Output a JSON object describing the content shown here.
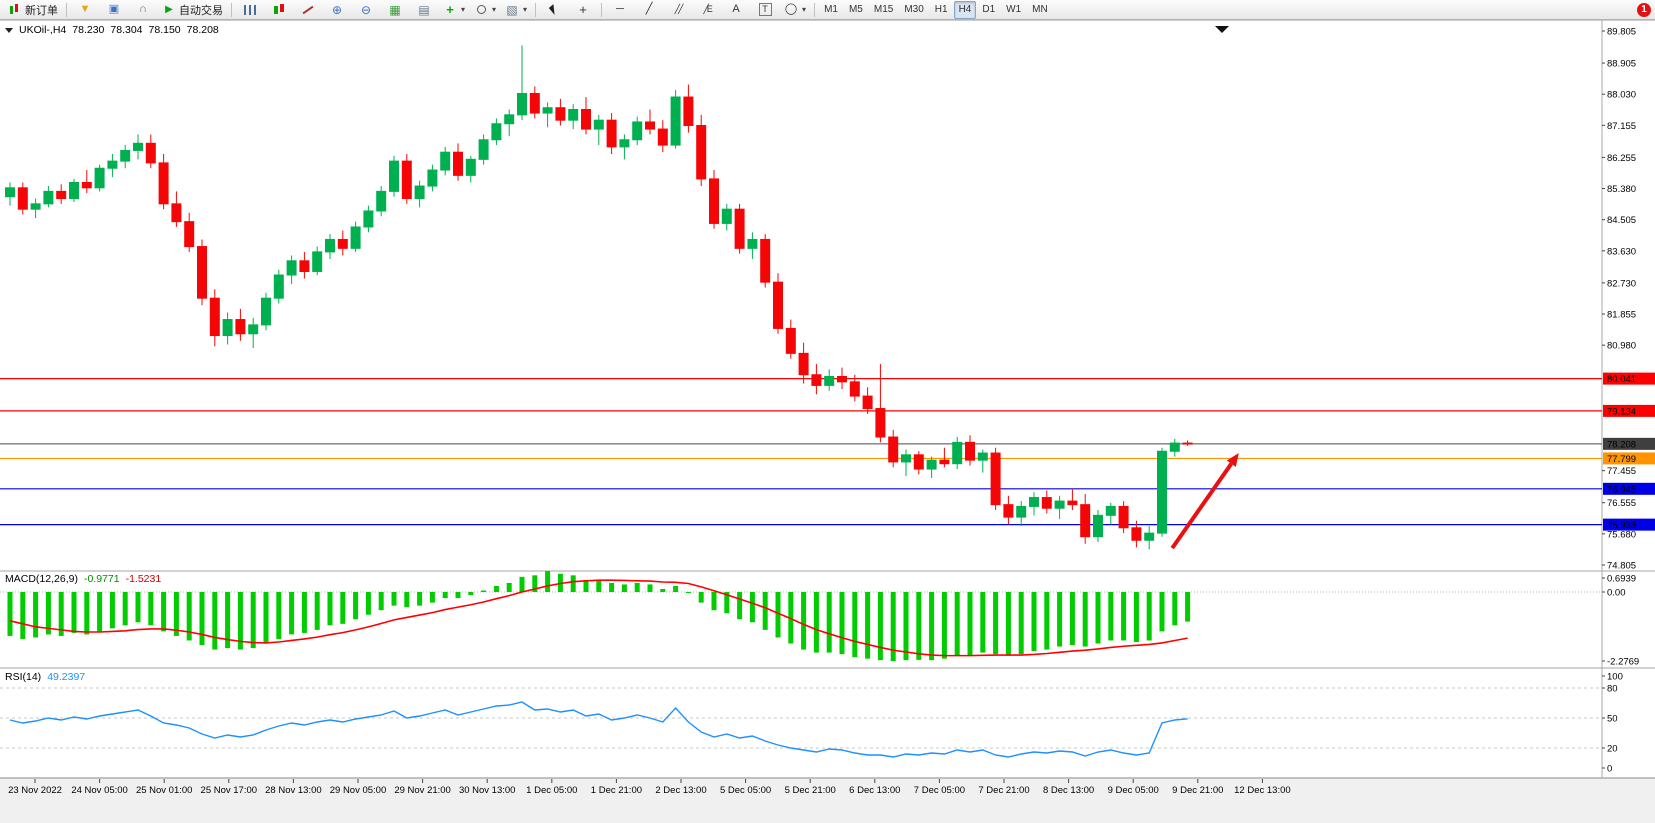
{
  "toolbar": {
    "buttons": [
      {
        "type": "labeled",
        "name": "new-order-button",
        "icon": "new-order-icon",
        "label": "新订单"
      },
      {
        "type": "sep"
      },
      {
        "type": "icon",
        "name": "funnel-button",
        "icon": "funnel-icon"
      },
      {
        "type": "icon",
        "name": "terminal-button",
        "icon": "terminal-icon"
      },
      {
        "type": "icon",
        "name": "headset-button",
        "icon": "headset-icon"
      },
      {
        "type": "labeled",
        "name": "auto-trading-button",
        "icon": "play-icon",
        "label": "自动交易"
      },
      {
        "type": "sep"
      },
      {
        "type": "icon",
        "name": "bar-chart-button",
        "icon": "bars-icon"
      },
      {
        "type": "icon",
        "name": "candle-chart-button",
        "icon": "candles-icon"
      },
      {
        "type": "icon",
        "name": "line-chart-button",
        "icon": "linechart-icon"
      },
      {
        "type": "icon",
        "name": "zoom-in-button",
        "icon": "zoom-in-icon"
      },
      {
        "type": "icon",
        "name": "zoom-out-button",
        "icon": "zoom-out-icon"
      },
      {
        "type": "icon",
        "name": "tile-windows-button",
        "icon": "tile-icon"
      },
      {
        "type": "icon",
        "name": "cascade-windows-button",
        "icon": "cascade-icon"
      },
      {
        "type": "icon",
        "name": "indicators-button",
        "icon": "plus-icon",
        "dropdown": true
      },
      {
        "type": "icon",
        "name": "periods-button",
        "icon": "clock-icon",
        "dropdown": true
      },
      {
        "type": "icon",
        "name": "templates-button",
        "icon": "template-icon",
        "dropdown": true
      },
      {
        "type": "sep"
      },
      {
        "type": "icon",
        "name": "cursor-button",
        "icon": "cursor-icon"
      },
      {
        "type": "icon",
        "name": "crosshair-button",
        "icon": "crosshair-icon"
      },
      {
        "type": "sep"
      },
      {
        "type": "icon",
        "name": "hline-button",
        "icon": "hline-icon"
      },
      {
        "type": "icon",
        "name": "trendline-button",
        "icon": "trendline-icon"
      },
      {
        "type": "icon",
        "name": "channel-button",
        "icon": "channel-icon"
      },
      {
        "type": "icon",
        "name": "fibo-button",
        "icon": "fibo-icon"
      },
      {
        "type": "icon",
        "name": "text-button",
        "icon": "text-icon"
      },
      {
        "type": "icon",
        "name": "label-button",
        "icon": "label-icon"
      },
      {
        "type": "icon",
        "name": "shapes-button",
        "icon": "shapes-icon",
        "dropdown": true
      },
      {
        "type": "sep"
      }
    ],
    "icon_glyphs": {
      "funnel-icon": "▼",
      "terminal-icon": "▣",
      "headset-icon": "∩",
      "play-icon": "▶",
      "zoom-in-icon": "⊕",
      "zoom-out-icon": "⊖",
      "tile-icon": "▦",
      "cascade-icon": "▤",
      "plus-icon": "+",
      "template-icon": "▧",
      "crosshair-icon": "+",
      "hline-icon": "─",
      "trendline-icon": "╱",
      "channel-icon": "╱╱",
      "fibo-icon": "╱E",
      "text-icon": "A",
      "label-icon": "T",
      "shapes-icon": "◯",
      "new-order-icon": "",
      "bars-icon": "",
      "candles-icon": "",
      "linechart-icon": "",
      "cursor-icon": "",
      "clock-icon": ""
    },
    "timeframes": [
      "M1",
      "M5",
      "M15",
      "M30",
      "H1",
      "H4",
      "D1",
      "W1",
      "MN"
    ],
    "active_timeframe": "H4",
    "notification_count": "1"
  },
  "chart": {
    "symbol_period": "UKOil-,H4",
    "open": "78.230",
    "high": "78.304",
    "low": "78.150",
    "close": "78.208"
  },
  "indicators": {
    "macd": {
      "label": "MACD(12,26,9)",
      "main_value": "-0.9771",
      "signal_value": "-1.5231",
      "axis_labels": [
        "0.6939",
        "0.00",
        "-2.2769"
      ]
    },
    "rsi": {
      "label": "RSI(14)",
      "value": "49.2397",
      "axis_labels": [
        "100",
        "80",
        "50",
        "20",
        "0"
      ],
      "levels": [
        80,
        50,
        20
      ]
    }
  },
  "colors": {
    "bull": "#00b050",
    "bear": "#f40606",
    "macd_bar": "#00cc00",
    "macd_signal": "#ff0000",
    "rsi_line": "#1e90ff",
    "current_badge": "#3f3f3f"
  },
  "chart_data": {
    "type": "candlestick",
    "symbol": "UKOil-",
    "timeframe": "H4",
    "x_labels": [
      "23 Nov 2022",
      "24 Nov 05:00",
      "25 Nov 01:00",
      "25 Nov 17:00",
      "28 Nov 13:00",
      "29 Nov 05:00",
      "29 Nov 21:00",
      "30 Nov 13:00",
      "1 Dec 05:00",
      "1 Dec 21:00",
      "2 Dec 13:00",
      "5 Dec 05:00",
      "5 Dec 21:00",
      "6 Dec 13:00",
      "7 Dec 05:00",
      "7 Dec 21:00",
      "8 Dec 13:00",
      "9 Dec 05:00",
      "9 Dec 21:00",
      "12 Dec 13:00"
    ],
    "price_axis_labels": [
      "89.805",
      "88.905",
      "88.030",
      "87.155",
      "86.255",
      "85.380",
      "84.505",
      "83.630",
      "82.730",
      "81.855",
      "80.980",
      "77.455",
      "76.555",
      "75.680",
      "74.805"
    ],
    "y_range": [
      74.6,
      90.1
    ],
    "ohlc": [
      [
        85.15,
        85.55,
        84.9,
        85.4
      ],
      [
        85.4,
        85.55,
        84.65,
        84.8
      ],
      [
        84.8,
        85.1,
        84.55,
        84.95
      ],
      [
        84.95,
        85.45,
        84.85,
        85.3
      ],
      [
        85.3,
        85.5,
        84.95,
        85.1
      ],
      [
        85.1,
        85.65,
        85.0,
        85.55
      ],
      [
        85.55,
        85.9,
        85.25,
        85.4
      ],
      [
        85.4,
        86.05,
        85.3,
        85.95
      ],
      [
        85.95,
        86.35,
        85.7,
        86.15
      ],
      [
        86.15,
        86.6,
        85.95,
        86.45
      ],
      [
        86.45,
        86.9,
        86.2,
        86.65
      ],
      [
        86.65,
        86.9,
        85.95,
        86.1
      ],
      [
        86.1,
        86.35,
        84.8,
        84.95
      ],
      [
        84.95,
        85.3,
        84.3,
        84.45
      ],
      [
        84.45,
        84.7,
        83.6,
        83.75
      ],
      [
        83.75,
        83.95,
        82.1,
        82.3
      ],
      [
        82.3,
        82.55,
        80.95,
        81.25
      ],
      [
        81.25,
        81.9,
        81.0,
        81.7
      ],
      [
        81.7,
        82.0,
        81.1,
        81.3
      ],
      [
        81.3,
        81.75,
        80.9,
        81.55
      ],
      [
        81.55,
        82.45,
        81.4,
        82.3
      ],
      [
        82.3,
        83.1,
        82.15,
        82.95
      ],
      [
        82.95,
        83.5,
        82.7,
        83.35
      ],
      [
        83.35,
        83.6,
        82.85,
        83.05
      ],
      [
        83.05,
        83.75,
        82.95,
        83.6
      ],
      [
        83.6,
        84.1,
        83.4,
        83.95
      ],
      [
        83.95,
        84.2,
        83.5,
        83.7
      ],
      [
        83.7,
        84.45,
        83.6,
        84.3
      ],
      [
        84.3,
        84.9,
        84.15,
        84.75
      ],
      [
        84.75,
        85.45,
        84.6,
        85.3
      ],
      [
        85.3,
        86.3,
        85.15,
        86.15
      ],
      [
        86.15,
        86.35,
        84.95,
        85.1
      ],
      [
        85.1,
        85.6,
        84.85,
        85.45
      ],
      [
        85.45,
        86.05,
        85.3,
        85.9
      ],
      [
        85.9,
        86.55,
        85.75,
        86.4
      ],
      [
        86.4,
        86.65,
        85.6,
        85.75
      ],
      [
        85.75,
        86.3,
        85.55,
        86.2
      ],
      [
        86.2,
        86.9,
        86.05,
        86.75
      ],
      [
        86.75,
        87.35,
        86.6,
        87.2
      ],
      [
        87.2,
        87.6,
        86.85,
        87.45
      ],
      [
        87.45,
        89.4,
        87.3,
        88.05
      ],
      [
        88.05,
        88.25,
        87.35,
        87.5
      ],
      [
        87.5,
        87.8,
        87.1,
        87.65
      ],
      [
        87.65,
        87.9,
        87.15,
        87.3
      ],
      [
        87.3,
        87.75,
        87.05,
        87.6
      ],
      [
        87.6,
        87.95,
        86.9,
        87.05
      ],
      [
        87.05,
        87.45,
        86.6,
        87.3
      ],
      [
        87.3,
        87.5,
        86.35,
        86.55
      ],
      [
        86.55,
        86.9,
        86.2,
        86.75
      ],
      [
        86.75,
        87.4,
        86.6,
        87.25
      ],
      [
        87.25,
        87.6,
        86.9,
        87.05
      ],
      [
        87.05,
        87.3,
        86.4,
        86.6
      ],
      [
        86.6,
        88.15,
        86.5,
        87.95
      ],
      [
        87.95,
        88.3,
        86.95,
        87.15
      ],
      [
        87.15,
        87.45,
        85.45,
        85.65
      ],
      [
        85.65,
        85.9,
        84.25,
        84.4
      ],
      [
        84.4,
        84.95,
        84.2,
        84.8
      ],
      [
        84.8,
        84.95,
        83.55,
        83.7
      ],
      [
        83.7,
        84.15,
        83.4,
        83.95
      ],
      [
        83.95,
        84.1,
        82.6,
        82.75
      ],
      [
        82.75,
        83.0,
        81.3,
        81.45
      ],
      [
        81.45,
        81.7,
        80.6,
        80.75
      ],
      [
        80.75,
        81.05,
        79.9,
        80.15
      ],
      [
        80.15,
        80.45,
        79.6,
        79.85
      ],
      [
        79.85,
        80.3,
        79.7,
        80.1
      ],
      [
        80.1,
        80.35,
        79.75,
        79.95
      ],
      [
        79.95,
        80.15,
        79.4,
        79.55
      ],
      [
        79.55,
        79.8,
        79.05,
        79.2
      ],
      [
        79.2,
        80.45,
        78.25,
        78.4
      ],
      [
        78.4,
        78.6,
        77.55,
        77.7
      ],
      [
        77.7,
        78.05,
        77.3,
        77.9
      ],
      [
        77.9,
        78.0,
        77.35,
        77.5
      ],
      [
        77.5,
        77.85,
        77.25,
        77.75
      ],
      [
        77.75,
        78.1,
        77.55,
        77.65
      ],
      [
        77.65,
        78.4,
        77.5,
        78.25
      ],
      [
        78.25,
        78.45,
        77.6,
        77.75
      ],
      [
        77.75,
        78.05,
        77.4,
        77.95
      ],
      [
        77.95,
        78.1,
        76.35,
        76.5
      ],
      [
        76.5,
        76.75,
        75.95,
        76.15
      ],
      [
        76.15,
        76.6,
        75.9,
        76.45
      ],
      [
        76.45,
        76.85,
        76.2,
        76.7
      ],
      [
        76.7,
        76.9,
        76.25,
        76.4
      ],
      [
        76.4,
        76.75,
        76.1,
        76.6
      ],
      [
        76.6,
        76.95,
        76.35,
        76.5
      ],
      [
        76.5,
        76.8,
        75.4,
        75.6
      ],
      [
        75.6,
        76.35,
        75.45,
        76.2
      ],
      [
        76.2,
        76.55,
        75.95,
        76.45
      ],
      [
        76.45,
        76.6,
        75.7,
        75.85
      ],
      [
        75.85,
        76.05,
        75.3,
        75.5
      ],
      [
        75.5,
        75.9,
        75.25,
        75.7
      ],
      [
        75.7,
        78.1,
        75.6,
        78.0
      ],
      [
        78.0,
        78.35,
        77.85,
        78.23
      ],
      [
        78.23,
        78.304,
        78.15,
        78.208
      ]
    ],
    "macd_histogram": [
      -1.45,
      -1.55,
      -1.5,
      -1.4,
      -1.45,
      -1.35,
      -1.4,
      -1.3,
      -1.2,
      -1.1,
      -1.0,
      -1.1,
      -1.3,
      -1.45,
      -1.6,
      -1.75,
      -1.9,
      -1.85,
      -1.9,
      -1.85,
      -1.7,
      -1.55,
      -1.4,
      -1.35,
      -1.25,
      -1.1,
      -1.05,
      -0.9,
      -0.75,
      -0.6,
      -0.45,
      -0.5,
      -0.45,
      -0.35,
      -0.2,
      -0.2,
      -0.1,
      0.05,
      0.2,
      0.3,
      0.5,
      0.55,
      0.6939,
      0.6,
      0.55,
      0.4,
      0.4,
      0.3,
      0.25,
      0.3,
      0.25,
      0.1,
      0.2,
      0.0,
      -0.35,
      -0.6,
      -0.7,
      -0.9,
      -1.0,
      -1.25,
      -1.5,
      -1.7,
      -1.9,
      -2.0,
      -2.0,
      -2.05,
      -2.15,
      -2.2,
      -2.25,
      -2.2769,
      -2.25,
      -2.24,
      -2.25,
      -2.2,
      -2.1,
      -2.1,
      -2.0,
      -2.05,
      -2.1,
      -2.05,
      -1.95,
      -1.9,
      -1.8,
      -1.75,
      -1.8,
      -1.7,
      -1.6,
      -1.6,
      -1.65,
      -1.6,
      -1.3,
      -1.1,
      -0.9771
    ],
    "macd_signal": [
      -0.95,
      -1.05,
      -1.15,
      -1.2,
      -1.25,
      -1.3,
      -1.32,
      -1.32,
      -1.3,
      -1.28,
      -1.24,
      -1.22,
      -1.22,
      -1.26,
      -1.32,
      -1.4,
      -1.5,
      -1.57,
      -1.63,
      -1.67,
      -1.68,
      -1.65,
      -1.6,
      -1.55,
      -1.49,
      -1.41,
      -1.34,
      -1.25,
      -1.15,
      -1.04,
      -0.92,
      -0.84,
      -0.76,
      -0.68,
      -0.58,
      -0.5,
      -0.42,
      -0.33,
      -0.22,
      -0.12,
      0.0,
      0.1,
      0.2,
      0.28,
      0.34,
      0.37,
      0.39,
      0.39,
      0.38,
      0.37,
      0.36,
      0.33,
      0.32,
      0.28,
      0.17,
      0.04,
      -0.09,
      -0.23,
      -0.37,
      -0.52,
      -0.7,
      -0.88,
      -1.07,
      -1.24,
      -1.38,
      -1.51,
      -1.63,
      -1.73,
      -1.83,
      -1.92,
      -1.98,
      -2.04,
      -2.08,
      -2.1,
      -2.1,
      -2.1,
      -2.09,
      -2.08,
      -2.08,
      -2.08,
      -2.06,
      -2.03,
      -1.99,
      -1.95,
      -1.92,
      -1.88,
      -1.83,
      -1.79,
      -1.76,
      -1.73,
      -1.68,
      -1.6,
      -1.5231
    ],
    "rsi": [
      48,
      45,
      47,
      50,
      48,
      51,
      49,
      52,
      54,
      56,
      58,
      52,
      45,
      43,
      40,
      34,
      30,
      33,
      31,
      33,
      38,
      42,
      45,
      43,
      46,
      48,
      46,
      49,
      51,
      53,
      57,
      50,
      52,
      55,
      58,
      53,
      56,
      59,
      62,
      63,
      66,
      58,
      59,
      56,
      58,
      52,
      54,
      48,
      50,
      53,
      50,
      46,
      60,
      46,
      36,
      31,
      34,
      30,
      32,
      27,
      23,
      20,
      18,
      16,
      19,
      18,
      15,
      13,
      13,
      11,
      14,
      13,
      15,
      14,
      18,
      16,
      18,
      13,
      11,
      14,
      16,
      15,
      17,
      16,
      12,
      16,
      18,
      15,
      13,
      15,
      45,
      48,
      49.24
    ],
    "hlines": [
      {
        "price": 80.041,
        "label": "80.041",
        "color": "#ff0000"
      },
      {
        "price": 79.134,
        "label": "79.134",
        "color": "#ff0000"
      },
      {
        "price": 78.208,
        "label": "78.208",
        "color": "#4a4a4a",
        "current": true
      },
      {
        "price": 77.799,
        "label": "77.799",
        "color": "#ff9400"
      },
      {
        "price": 76.945,
        "label": "76.945",
        "color": "#0000e8"
      },
      {
        "price": 75.939,
        "label": "75.939",
        "color": "#0000e8"
      }
    ],
    "arrow_annotation": {
      "from_index": 90.8,
      "from_price": 75.28,
      "to_index": 96,
      "to_price": 77.95,
      "color": "#e81010"
    }
  }
}
